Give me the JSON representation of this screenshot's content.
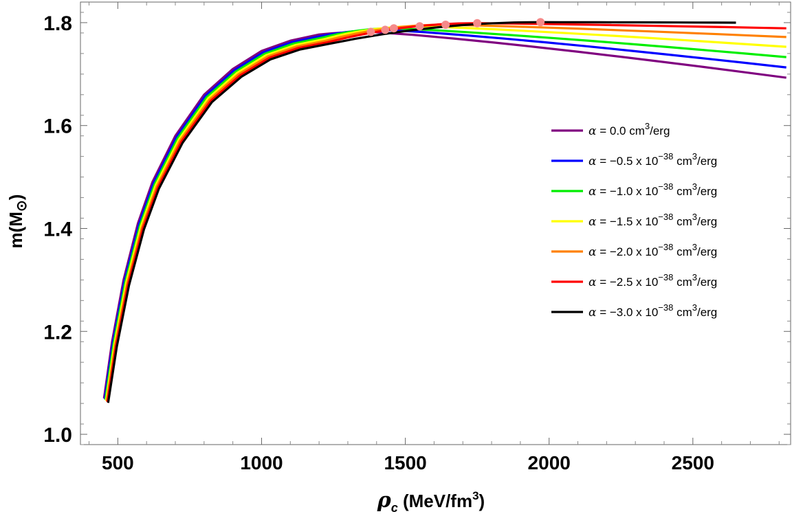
{
  "chart_data": {
    "type": "line",
    "title": "",
    "xlabel": {
      "symbol": "ρ",
      "subscript": "c",
      "unit_prefix": " (MeV/fm",
      "unit_sup": "3",
      "unit_suffix": ")"
    },
    "ylabel": {
      "prefix": "m(M",
      "symbol": "⊙",
      "suffix": ")"
    },
    "xlim": [
      370,
      2840
    ],
    "ylim": [
      0.98,
      1.84
    ],
    "xticks": [
      500,
      1000,
      1500,
      2000,
      2500
    ],
    "xtick_labels": [
      "500",
      "1000",
      "1500",
      "2000",
      "2500"
    ],
    "yticks": [
      1.0,
      1.2,
      1.4,
      1.6,
      1.8
    ],
    "ytick_labels": [
      "1.0",
      "1.2",
      "1.4",
      "1.6",
      "1.8"
    ],
    "legend_position": "center-right",
    "marker_color": "#f58a8a",
    "series": [
      {
        "name": "α = 0.0 cm³/erg",
        "alpha_label": "α",
        "value_text": " = 0.0 cm",
        "pow_base": "",
        "pow_exp": "",
        "unit_exp": "3",
        "unit_suffix": "/erg",
        "color": "#800080",
        "peak": [
          1380,
          1.782
        ],
        "end": [
          2825,
          1.693
        ]
      },
      {
        "name": "α = −0.5 x 10⁻³⁸ cm³/erg",
        "alpha_label": "α",
        "value_text": " = −0.5 x 10",
        "pow_exp": "−38",
        "unit_text": " cm",
        "unit_exp": "3",
        "unit_suffix": "/erg",
        "color": "#0000ff",
        "peak": [
          1430,
          1.786
        ],
        "end": [
          2825,
          1.713
        ]
      },
      {
        "name": "α = −1.0 x 10⁻³⁸ cm³/erg",
        "alpha_label": "α",
        "value_text": " = −1.0 x 10",
        "pow_exp": "−38",
        "unit_text": " cm",
        "unit_exp": "3",
        "unit_suffix": "/erg",
        "color": "#00ee00",
        "peak": [
          1460,
          1.789
        ],
        "end": [
          2825,
          1.733
        ]
      },
      {
        "name": "α = −1.5 x 10⁻³⁸ cm³/erg",
        "alpha_label": "α",
        "value_text": " = −1.5 x 10",
        "pow_exp": "−38",
        "unit_text": " cm",
        "unit_exp": "3",
        "unit_suffix": "/erg",
        "color": "#ffff00",
        "peak": [
          1550,
          1.793
        ],
        "end": [
          2825,
          1.753
        ]
      },
      {
        "name": "α = −2.0 x 10⁻³⁸ cm³/erg",
        "alpha_label": "α",
        "value_text": " = −2.0 x 10",
        "pow_exp": "−38",
        "unit_text": " cm",
        "unit_exp": "3",
        "unit_suffix": "/erg",
        "color": "#ff8000",
        "peak": [
          1640,
          1.796
        ],
        "end": [
          2825,
          1.772
        ]
      },
      {
        "name": "α = −2.5 x 10⁻³⁸ cm³/erg",
        "alpha_label": "α",
        "value_text": " = −2.5 x 10",
        "pow_exp": "−38",
        "unit_text": " cm",
        "unit_exp": "3",
        "unit_suffix": "/erg",
        "color": "#ff0000",
        "peak": [
          1750,
          1.799
        ],
        "end": [
          2825,
          1.789
        ]
      },
      {
        "name": "α = −3.0 x 10⁻³⁸ cm³/erg",
        "alpha_label": "α",
        "value_text": " = −3.0 x 10",
        "pow_exp": "−38",
        "unit_text": " cm",
        "unit_exp": "3",
        "unit_suffix": "/erg",
        "color": "#000000",
        "peak": [
          1970,
          1.801
        ],
        "end": [
          2650,
          1.8
        ]
      }
    ],
    "rise_points": [
      {
        "x": 452,
        "m": 1.07
      },
      {
        "x": 480,
        "m": 1.18
      },
      {
        "x": 520,
        "m": 1.3
      },
      {
        "x": 570,
        "m": 1.41
      },
      {
        "x": 620,
        "m": 1.49
      },
      {
        "x": 700,
        "m": 1.58
      },
      {
        "x": 800,
        "m": 1.66
      },
      {
        "x": 900,
        "m": 1.71
      },
      {
        "x": 1000,
        "m": 1.745
      },
      {
        "x": 1100,
        "m": 1.765
      },
      {
        "x": 1200,
        "m": 1.777
      }
    ]
  }
}
